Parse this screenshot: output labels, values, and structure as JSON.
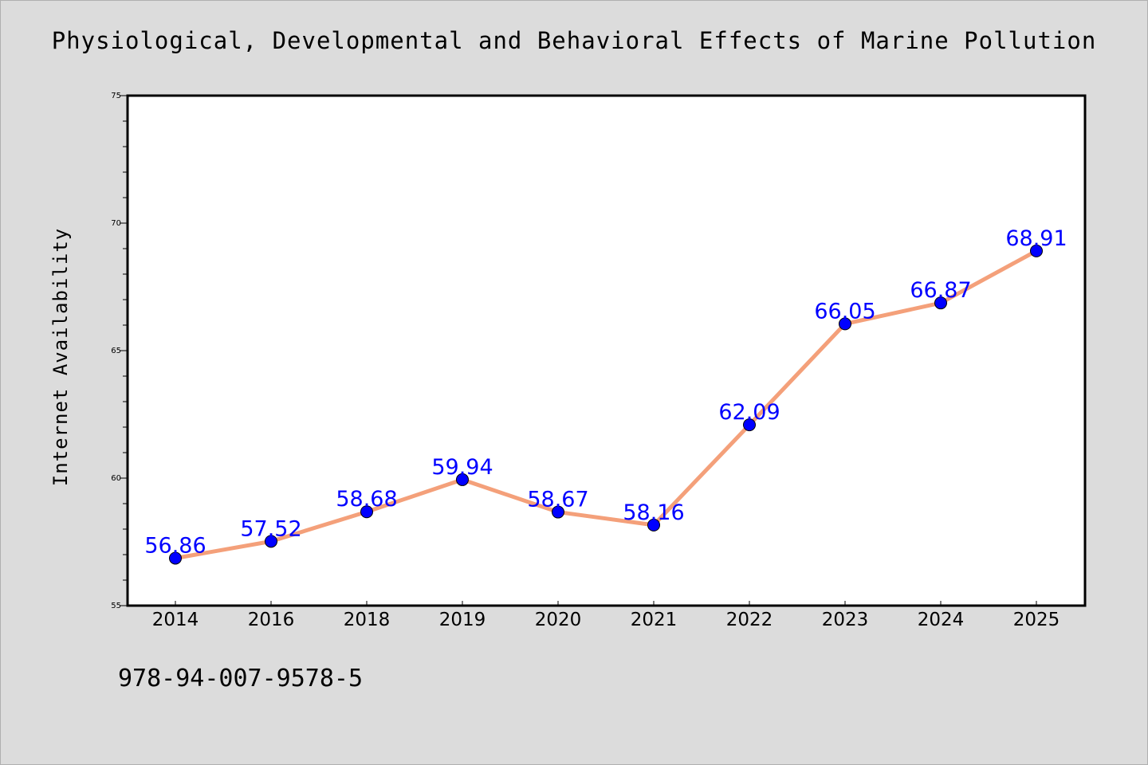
{
  "chart_data": {
    "type": "line",
    "title": "Physiological, Developmental and Behavioral Effects of Marine Pollution",
    "xlabel": "",
    "ylabel": "Internet Availability",
    "categories": [
      "2014",
      "2016",
      "2018",
      "2019",
      "2020",
      "2021",
      "2022",
      "2023",
      "2024",
      "2025"
    ],
    "series": [
      {
        "values": [
          56.86,
          57.52,
          58.68,
          59.94,
          58.67,
          58.16,
          62.09,
          66.05,
          66.87,
          68.91
        ],
        "data_labels": [
          "56.86",
          "57.52",
          "58.68",
          "59.94",
          "58.67",
          "58.16",
          "62.09",
          "66.05",
          "66.87",
          "68.91"
        ]
      }
    ],
    "ylim": [
      55,
      75
    ],
    "yticks": [
      "55",
      "60",
      "65",
      "70",
      "75"
    ],
    "grid": false,
    "legend": "none",
    "colors": {
      "line": "#f4a07a",
      "marker": "#0000ff",
      "label": "#0000ff",
      "background": "#dcdcdc",
      "plot_background": "#ffffff"
    }
  },
  "footer": {
    "isbn": "978-94-007-9578-5"
  }
}
